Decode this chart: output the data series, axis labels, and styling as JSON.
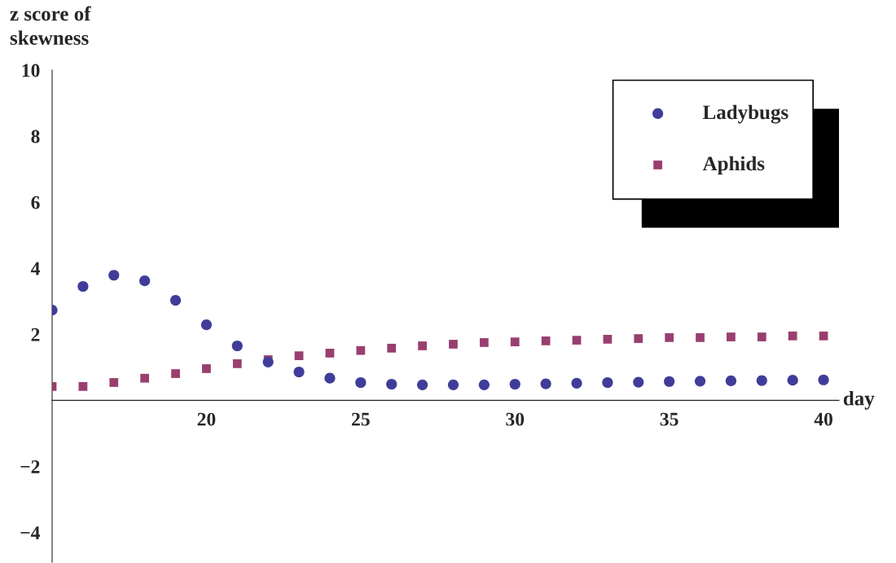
{
  "chart_data": {
    "type": "scatter",
    "xlabel": "day",
    "ylabel": "z score of\nskewness",
    "x": [
      15,
      16,
      17,
      18,
      19,
      20,
      21,
      22,
      23,
      24,
      25,
      26,
      27,
      28,
      29,
      30,
      31,
      32,
      33,
      34,
      35,
      36,
      37,
      38,
      39,
      40
    ],
    "series": [
      {
        "name": "Ladybugs",
        "color": "#3f3d99",
        "marker": "circle",
        "values": [
          2.73,
          3.45,
          3.79,
          3.62,
          3.03,
          2.29,
          1.65,
          1.16,
          0.86,
          0.67,
          0.54,
          0.49,
          0.47,
          0.47,
          0.47,
          0.49,
          0.5,
          0.52,
          0.54,
          0.55,
          0.57,
          0.58,
          0.59,
          0.6,
          0.61,
          0.62
        ]
      },
      {
        "name": "Aphids",
        "color": "#993f6f",
        "marker": "square",
        "values": [
          0.42,
          0.42,
          0.54,
          0.67,
          0.81,
          0.96,
          1.11,
          1.23,
          1.35,
          1.43,
          1.51,
          1.58,
          1.65,
          1.7,
          1.75,
          1.77,
          1.8,
          1.82,
          1.85,
          1.87,
          1.9,
          1.9,
          1.92,
          1.92,
          1.95,
          1.95
        ]
      }
    ],
    "xlim": [
      15,
      40.5
    ],
    "ylim": [
      -4.9,
      10
    ],
    "xticks": [
      20,
      25,
      30,
      35,
      40
    ],
    "yticks": [
      -4,
      -2,
      2,
      4,
      6,
      8,
      10
    ],
    "grid": false,
    "legend": "top right"
  }
}
